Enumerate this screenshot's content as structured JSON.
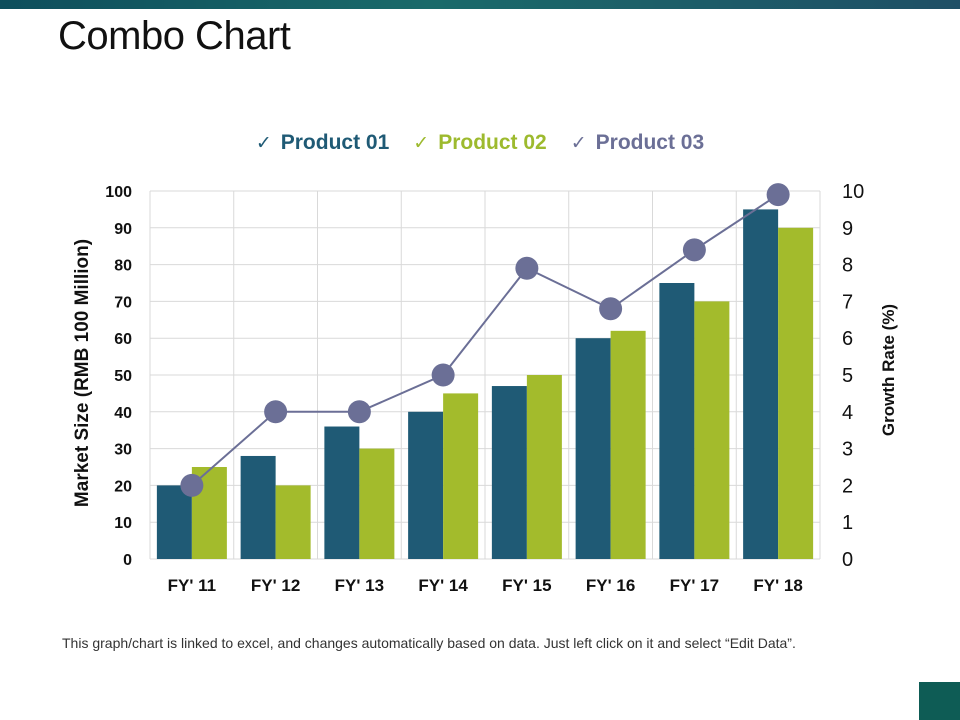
{
  "title": "Combo Chart",
  "footnote": "This graph/chart is linked to excel, and changes automatically based on data. Just left click on it and select “Edit Data”.",
  "legend": [
    {
      "check": "✓",
      "label": "Product 01",
      "color": "#1f5a75"
    },
    {
      "check": "✓",
      "label": "Product 02",
      "color": "#9dba2e"
    },
    {
      "check": "✓",
      "label": "Product 03",
      "color": "#6b6f96"
    }
  ],
  "chart_data": {
    "type": "bar",
    "categories": [
      "FY' 11",
      "FY' 12",
      "FY' 13",
      "FY' 14",
      "FY' 15",
      "FY' 16",
      "FY' 17",
      "FY' 18"
    ],
    "series": [
      {
        "name": "Product 01",
        "type": "bar",
        "axis": "left",
        "color": "#1f5a75",
        "values": [
          20,
          28,
          36,
          40,
          47,
          60,
          75,
          95
        ]
      },
      {
        "name": "Product 02",
        "type": "bar",
        "axis": "left",
        "color": "#a3bb2c",
        "values": [
          25,
          20,
          30,
          45,
          50,
          62,
          70,
          90
        ]
      },
      {
        "name": "Product 03",
        "type": "line",
        "axis": "right",
        "color": "#6b6f96",
        "values": [
          2,
          4,
          4,
          5,
          7.9,
          6.8,
          8.4,
          9.9
        ]
      }
    ],
    "ylabel": "Market Size (RMB 100 Million)",
    "ylabel_right": "Growth Rate (%)",
    "ylim": [
      0,
      100
    ],
    "ylim_right": [
      0,
      10
    ],
    "yticks": [
      0,
      10,
      20,
      30,
      40,
      50,
      60,
      70,
      80,
      90,
      100
    ],
    "yticks_right": [
      0,
      1,
      2,
      3,
      4,
      5,
      6,
      7,
      8,
      9,
      10
    ],
    "grid": true,
    "legend_position": "top"
  }
}
